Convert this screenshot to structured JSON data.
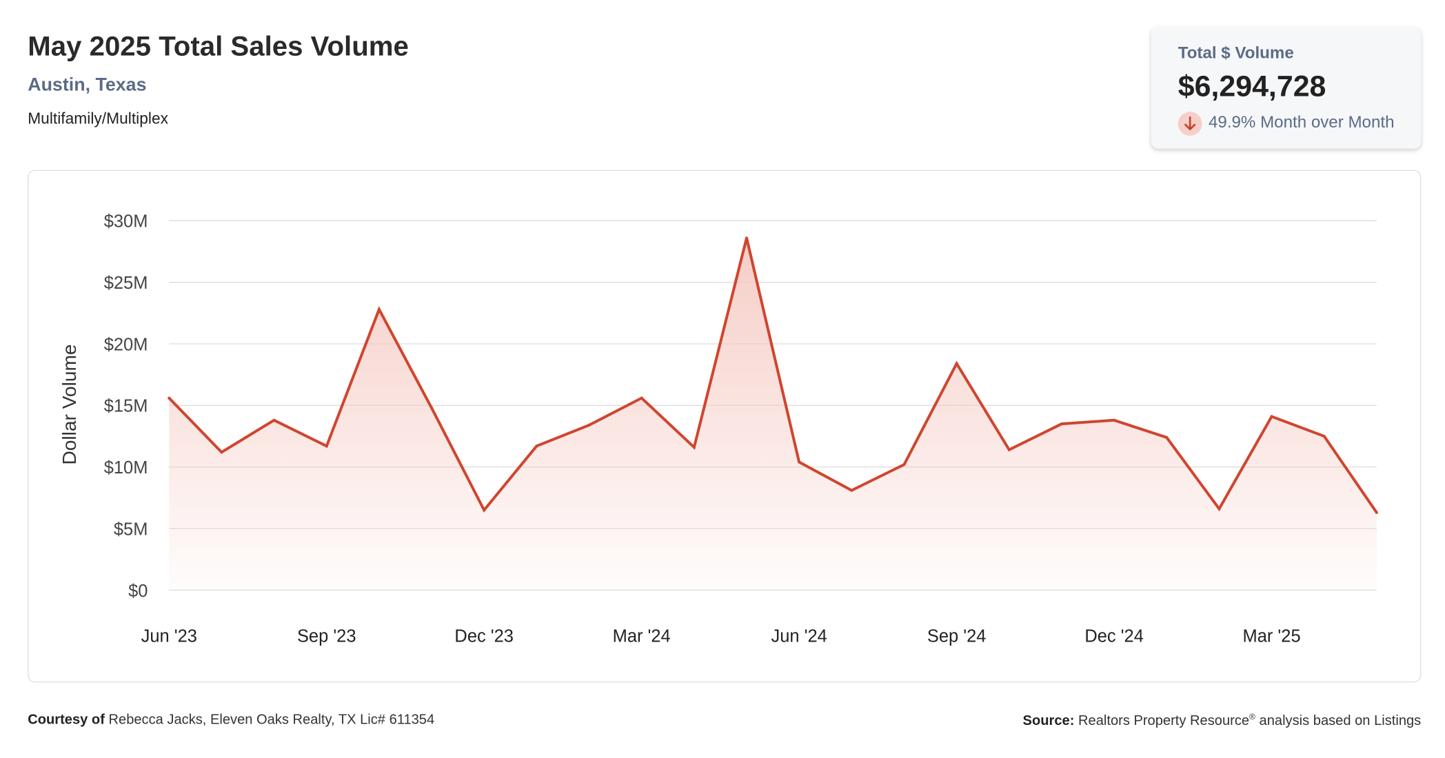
{
  "header": {
    "title": "May 2025 Total Sales Volume",
    "location": "Austin, Texas",
    "category": "Multifamily/Multiplex"
  },
  "kpi": {
    "label": "Total $ Volume",
    "value": "$6,294,728",
    "change_text": "49.9% Month over Month",
    "direction_icon": "arrow-down-icon"
  },
  "colors": {
    "line": "#d0452f",
    "fill": "#f5c8c0",
    "grid": "#dddddd",
    "axis_text": "#444444"
  },
  "chart_data": {
    "type": "area",
    "ylabel": "Dollar Volume",
    "ylim": [
      0,
      30000000
    ],
    "y_ticks": [
      {
        "value": 0,
        "label": "$0"
      },
      {
        "value": 5000000,
        "label": "$5M"
      },
      {
        "value": 10000000,
        "label": "$10M"
      },
      {
        "value": 15000000,
        "label": "$15M"
      },
      {
        "value": 20000000,
        "label": "$20M"
      },
      {
        "value": 25000000,
        "label": "$25M"
      },
      {
        "value": 30000000,
        "label": "$30M"
      }
    ],
    "x_tick_labels": [
      {
        "index": 0,
        "label": "Jun '23"
      },
      {
        "index": 3,
        "label": "Sep '23"
      },
      {
        "index": 6,
        "label": "Dec '23"
      },
      {
        "index": 9,
        "label": "Mar '24"
      },
      {
        "index": 12,
        "label": "Jun '24"
      },
      {
        "index": 15,
        "label": "Sep '24"
      },
      {
        "index": 18,
        "label": "Dec '24"
      },
      {
        "index": 21,
        "label": "Mar '25"
      }
    ],
    "grid": true,
    "legend": "none",
    "series": [
      {
        "x": [
          "Jun '23",
          "Jul '23",
          "Aug '23",
          "Sep '23",
          "Oct '23",
          "Nov '23",
          "Dec '23",
          "Jan '24",
          "Feb '24",
          "Mar '24",
          "Apr '24",
          "May '24",
          "Jun '24",
          "Jul '24",
          "Aug '24",
          "Sep '24",
          "Oct '24",
          "Nov '24",
          "Dec '24",
          "Jan '25",
          "Feb '25",
          "Mar '25",
          "Apr '25",
          "May '25"
        ],
        "values": [
          15600000,
          11200000,
          13800000,
          11700000,
          22800000,
          14800000,
          6500000,
          11700000,
          13400000,
          15600000,
          11600000,
          28600000,
          10400000,
          8100000,
          10200000,
          18400000,
          11400000,
          13500000,
          13800000,
          12400000,
          6600000,
          14100000,
          12500000,
          6294728
        ]
      }
    ]
  },
  "footer": {
    "courtesy_label": "Courtesy of",
    "courtesy_text": "Rebecca Jacks, Eleven Oaks Realty, TX Lic# 611354",
    "source_label": "Source:",
    "source_text_1": "Realtors Property Resource",
    "source_reg": "®",
    "source_text_2": "analysis based on Listings"
  }
}
